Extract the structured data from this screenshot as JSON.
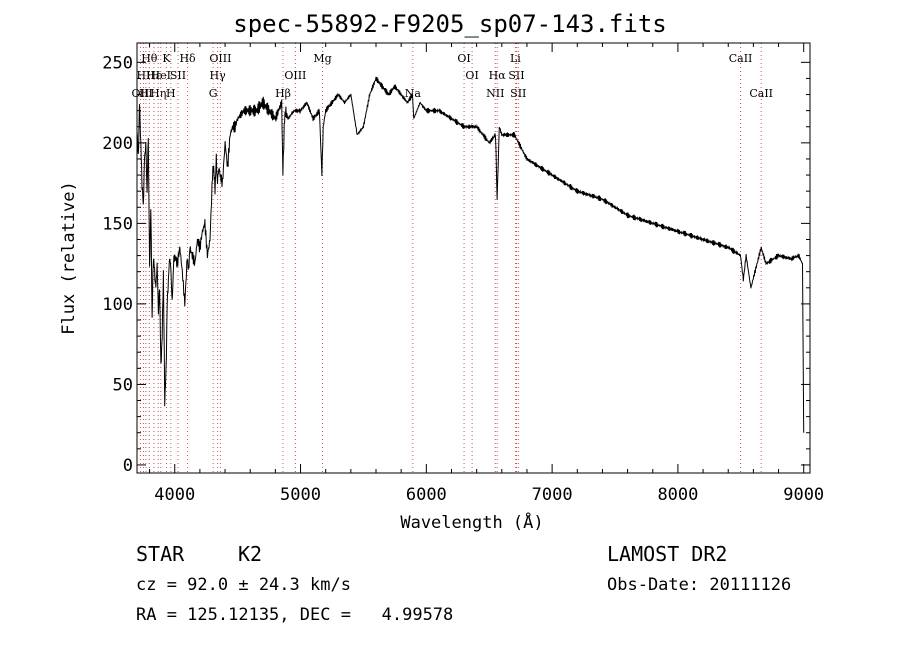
{
  "chart_data": {
    "type": "line",
    "title": "spec-55892-F9205_sp07-143.fits",
    "xlabel": "Wavelength (Å)",
    "ylabel": "Flux (relative)",
    "xlim": [
      3700,
      9050
    ],
    "ylim": [
      -5,
      262
    ],
    "xticks": [
      4000,
      5000,
      6000,
      7000,
      8000,
      9000
    ],
    "yticks": [
      0,
      50,
      100,
      150,
      200,
      250
    ],
    "grid": false,
    "series": [
      {
        "x": [
          3700,
          3710,
          3720,
          3730,
          3740,
          3750,
          3760,
          3770,
          3780,
          3790,
          3800,
          3810,
          3820,
          3830,
          3840,
          3850,
          3860,
          3870,
          3880,
          3890,
          3900,
          3910,
          3920,
          3930,
          3940,
          3950,
          3960,
          3970,
          3980,
          3990,
          4000,
          4020,
          4040,
          4060,
          4080,
          4100,
          4110,
          4120,
          4140,
          4160,
          4180,
          4200,
          4220,
          4240,
          4260,
          4280,
          4300,
          4310,
          4320,
          4330,
          4340,
          4350,
          4360,
          4380,
          4400,
          4420,
          4440,
          4460,
          4480,
          4500,
          4550,
          4600,
          4650,
          4700,
          4750,
          4800,
          4850,
          4860,
          4870,
          4880,
          4900,
          4950,
          5000,
          5050,
          5100,
          5150,
          5170,
          5180,
          5200,
          5250,
          5300,
          5350,
          5400,
          5450,
          5500,
          5550,
          5600,
          5650,
          5700,
          5750,
          5800,
          5850,
          5890,
          5900,
          5950,
          6000,
          6100,
          6200,
          6300,
          6400,
          6500,
          6550,
          6563,
          6580,
          6600,
          6700,
          6800,
          6900,
          7000,
          7200,
          7400,
          7600,
          7800,
          8000,
          8200,
          8400,
          8498,
          8520,
          8542,
          8580,
          8662,
          8700,
          8800,
          8900,
          8960,
          8990,
          9000
        ],
        "y": [
          210,
          190,
          225,
          200,
          175,
          160,
          190,
          200,
          170,
          205,
          120,
          160,
          90,
          130,
          120,
          110,
          125,
          95,
          110,
          60,
          80,
          120,
          40,
          55,
          100,
          115,
          130,
          120,
          100,
          125,
          130,
          125,
          135,
          120,
          100,
          130,
          120,
          135,
          130,
          125,
          140,
          135,
          145,
          150,
          130,
          140,
          180,
          185,
          170,
          190,
          175,
          185,
          180,
          175,
          200,
          185,
          205,
          210,
          210,
          215,
          220,
          220,
          220,
          225,
          220,
          215,
          225,
          180,
          210,
          220,
          215,
          220,
          220,
          225,
          215,
          220,
          180,
          210,
          220,
          225,
          230,
          225,
          230,
          205,
          210,
          230,
          240,
          235,
          230,
          235,
          230,
          225,
          230,
          215,
          225,
          220,
          220,
          215,
          210,
          210,
          200,
          205,
          165,
          210,
          205,
          205,
          190,
          185,
          180,
          170,
          165,
          155,
          150,
          145,
          140,
          135,
          130,
          115,
          130,
          110,
          135,
          125,
          130,
          128,
          130,
          125,
          20
        ]
      }
    ],
    "line_markers": [
      {
        "x": 3727,
        "row": 3,
        "label": "OII"
      },
      {
        "x": 3751,
        "row": 2,
        "label": "HI"
      },
      {
        "x": 3771,
        "row": 3,
        "label": "HI"
      },
      {
        "x": 3798,
        "row": 1,
        "label": "Hθ"
      },
      {
        "x": 3835,
        "row": 2,
        "label": "Hε"
      },
      {
        "x": 3869,
        "row": 3,
        "label": "Hη"
      },
      {
        "x": 3889,
        "row": 2,
        "label": "HeI"
      },
      {
        "x": 3934,
        "row": 1,
        "label": "K"
      },
      {
        "x": 3969,
        "row": 3,
        "label": "H"
      },
      {
        "x": 4026,
        "row": 2,
        "label": "SII"
      },
      {
        "x": 4102,
        "row": 1,
        "label": "Hδ"
      },
      {
        "x": 4305,
        "row": 3,
        "label": "G"
      },
      {
        "x": 4341,
        "row": 2,
        "label": "Hγ"
      },
      {
        "x": 4363,
        "row": 1,
        "label": "OIII"
      },
      {
        "x": 4861,
        "row": 3,
        "label": "Hβ"
      },
      {
        "x": 4959,
        "row": 2,
        "label": "OIII"
      },
      {
        "x": 5175,
        "row": 1,
        "label": "Mg"
      },
      {
        "x": 5893,
        "row": 3,
        "label": "Na"
      },
      {
        "x": 6300,
        "row": 1,
        "label": "OI"
      },
      {
        "x": 6364,
        "row": 2,
        "label": "OI"
      },
      {
        "x": 6548,
        "row": 3,
        "label": "NII"
      },
      {
        "x": 6563,
        "row": 2,
        "label": "Hα"
      },
      {
        "x": 6708,
        "row": 1,
        "label": "Li"
      },
      {
        "x": 6717,
        "row": 2,
        "label": "SII"
      },
      {
        "x": 6731,
        "row": 3,
        "label": "SII"
      },
      {
        "x": 8498,
        "row": 1,
        "label": "CaII"
      },
      {
        "x": 8662,
        "row": 3,
        "label": "CaII"
      }
    ]
  },
  "info": {
    "object_class": "STAR",
    "subclass": "K2",
    "survey": "LAMOST DR2",
    "redshift": "cz = 92.0 ± 24.3 km/s",
    "obs_date": "Obs-Date: 20111126",
    "coords": "RA = 125.12135, DEC =   4.99578"
  }
}
